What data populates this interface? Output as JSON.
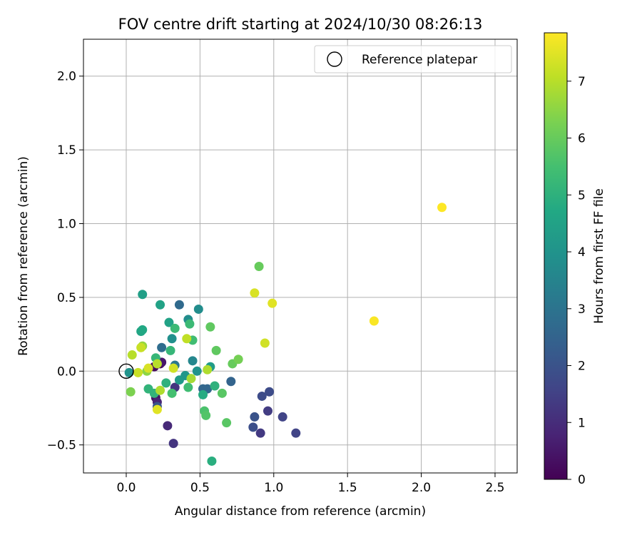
{
  "chart_data": {
    "type": "scatter",
    "title": "FOV centre drift starting at 2024/10/30 08:26:13",
    "xlabel": "Angular distance from reference (arcmin)",
    "ylabel": "Rotation from reference (arcmin)",
    "xlim": [
      -0.29,
      2.65
    ],
    "ylim": [
      -0.69,
      2.25
    ],
    "xticks": [
      0.0,
      0.5,
      1.0,
      1.5,
      2.0,
      2.5
    ],
    "xtick_labels": [
      "0.0",
      "0.5",
      "1.0",
      "1.5",
      "2.0",
      "2.5"
    ],
    "yticks": [
      -0.5,
      0.0,
      0.5,
      1.0,
      1.5,
      2.0
    ],
    "ytick_labels": [
      "−0.5",
      "0.0",
      "0.5",
      "1.0",
      "1.5",
      "2.0"
    ],
    "grid": true,
    "legend": {
      "position": "top-right",
      "entries": [
        "Reference platepar"
      ]
    },
    "reference_point": {
      "x": 0.0,
      "y": 0.0,
      "label": "Reference platepar"
    },
    "colorbar": {
      "label": "Hours from first FF file",
      "colormap": "viridis",
      "range": [
        0,
        7.85
      ],
      "ticks": [
        0,
        1,
        2,
        3,
        4,
        5,
        6,
        7
      ],
      "tick_labels": [
        "0",
        "1",
        "2",
        "3",
        "4",
        "5",
        "6",
        "7"
      ]
    },
    "points": [
      {
        "x": 0.23,
        "y": 0.05,
        "c": 0.1
      },
      {
        "x": 0.19,
        "y": 0.03,
        "c": 0.2
      },
      {
        "x": 0.2,
        "y": -0.18,
        "c": 0.4
      },
      {
        "x": 0.24,
        "y": 0.06,
        "c": 0.5
      },
      {
        "x": 0.21,
        "y": -0.21,
        "c": 0.8
      },
      {
        "x": 0.28,
        "y": -0.37,
        "c": 0.9
      },
      {
        "x": 0.32,
        "y": -0.49,
        "c": 1.2
      },
      {
        "x": 0.33,
        "y": -0.11,
        "c": 1.2
      },
      {
        "x": 0.91,
        "y": -0.42,
        "c": 1.3
      },
      {
        "x": 0.96,
        "y": -0.27,
        "c": 1.4
      },
      {
        "x": 1.15,
        "y": -0.42,
        "c": 1.6
      },
      {
        "x": 1.06,
        "y": -0.31,
        "c": 1.6
      },
      {
        "x": 0.92,
        "y": -0.17,
        "c": 1.8
      },
      {
        "x": 0.97,
        "y": -0.14,
        "c": 1.8
      },
      {
        "x": 0.86,
        "y": -0.38,
        "c": 1.9
      },
      {
        "x": 0.87,
        "y": -0.31,
        "c": 2.0
      },
      {
        "x": 0.21,
        "y": -0.24,
        "c": 2.1
      },
      {
        "x": 0.71,
        "y": -0.07,
        "c": 2.5
      },
      {
        "x": 0.55,
        "y": -0.12,
        "c": 2.6
      },
      {
        "x": 0.52,
        "y": -0.12,
        "c": 2.6
      },
      {
        "x": 0.36,
        "y": 0.45,
        "c": 2.7
      },
      {
        "x": 0.24,
        "y": 0.16,
        "c": 2.8
      },
      {
        "x": 0.33,
        "y": 0.04,
        "c": 3.1
      },
      {
        "x": 0.45,
        "y": 0.07,
        "c": 3.6
      },
      {
        "x": 0.49,
        "y": 0.42,
        "c": 3.8
      },
      {
        "x": 0.42,
        "y": 0.35,
        "c": 3.8
      },
      {
        "x": 0.31,
        "y": 0.22,
        "c": 3.9
      },
      {
        "x": 0.48,
        "y": 0.0,
        "c": 4.0
      },
      {
        "x": 0.02,
        "y": -0.01,
        "c": 4.0
      },
      {
        "x": 0.4,
        "y": -0.03,
        "c": 4.1
      },
      {
        "x": 0.36,
        "y": -0.06,
        "c": 4.2
      },
      {
        "x": 0.57,
        "y": 0.03,
        "c": 4.3
      },
      {
        "x": 0.11,
        "y": 0.52,
        "c": 4.4
      },
      {
        "x": 0.23,
        "y": 0.45,
        "c": 4.5
      },
      {
        "x": 0.29,
        "y": 0.33,
        "c": 4.5
      },
      {
        "x": 0.1,
        "y": 0.27,
        "c": 4.6
      },
      {
        "x": 0.11,
        "y": 0.28,
        "c": 4.7
      },
      {
        "x": 0.52,
        "y": -0.16,
        "c": 4.8
      },
      {
        "x": 0.58,
        "y": -0.61,
        "c": 4.9
      },
      {
        "x": 0.6,
        "y": -0.1,
        "c": 5.0
      },
      {
        "x": 0.27,
        "y": -0.08,
        "c": 5.0
      },
      {
        "x": 0.15,
        "y": -0.12,
        "c": 5.1
      },
      {
        "x": 0.19,
        "y": -0.15,
        "c": 5.1
      },
      {
        "x": 0.2,
        "y": 0.09,
        "c": 5.2
      },
      {
        "x": 0.3,
        "y": 0.14,
        "c": 5.2
      },
      {
        "x": 0.33,
        "y": 0.29,
        "c": 5.3
      },
      {
        "x": 0.43,
        "y": 0.32,
        "c": 5.3
      },
      {
        "x": 0.45,
        "y": 0.21,
        "c": 5.4
      },
      {
        "x": 0.42,
        "y": -0.11,
        "c": 5.4
      },
      {
        "x": 0.31,
        "y": -0.15,
        "c": 5.5
      },
      {
        "x": 0.53,
        "y": -0.27,
        "c": 5.6
      },
      {
        "x": 0.54,
        "y": -0.3,
        "c": 5.7
      },
      {
        "x": 0.65,
        "y": -0.15,
        "c": 5.8
      },
      {
        "x": 0.68,
        "y": -0.35,
        "c": 5.8
      },
      {
        "x": 0.61,
        "y": 0.14,
        "c": 5.9
      },
      {
        "x": 0.57,
        "y": 0.3,
        "c": 5.9
      },
      {
        "x": 0.9,
        "y": 0.71,
        "c": 6.0
      },
      {
        "x": 0.72,
        "y": 0.05,
        "c": 6.0
      },
      {
        "x": 0.76,
        "y": 0.08,
        "c": 6.2
      },
      {
        "x": 0.03,
        "y": -0.14,
        "c": 6.3
      },
      {
        "x": 0.14,
        "y": 0.0,
        "c": 6.5
      },
      {
        "x": 0.11,
        "y": 0.17,
        "c": 6.6
      },
      {
        "x": 0.44,
        "y": -0.05,
        "c": 6.8
      },
      {
        "x": 0.23,
        "y": -0.13,
        "c": 6.9
      },
      {
        "x": 0.55,
        "y": 0.01,
        "c": 6.9
      },
      {
        "x": 0.21,
        "y": 0.05,
        "c": 7.0
      },
      {
        "x": 0.04,
        "y": 0.11,
        "c": 7.0
      },
      {
        "x": 0.41,
        "y": 0.22,
        "c": 7.1
      },
      {
        "x": 0.1,
        "y": 0.16,
        "c": 7.2
      },
      {
        "x": 0.08,
        "y": -0.01,
        "c": 7.2
      },
      {
        "x": 0.32,
        "y": 0.02,
        "c": 7.3
      },
      {
        "x": 0.94,
        "y": 0.19,
        "c": 7.3
      },
      {
        "x": 0.87,
        "y": 0.53,
        "c": 7.4
      },
      {
        "x": 0.99,
        "y": 0.46,
        "c": 7.5
      },
      {
        "x": 0.21,
        "y": -0.26,
        "c": 7.5
      },
      {
        "x": 0.15,
        "y": 0.02,
        "c": 7.4
      },
      {
        "x": 1.68,
        "y": 0.34,
        "c": 7.8
      },
      {
        "x": 2.14,
        "y": 1.11,
        "c": 7.85
      }
    ]
  }
}
